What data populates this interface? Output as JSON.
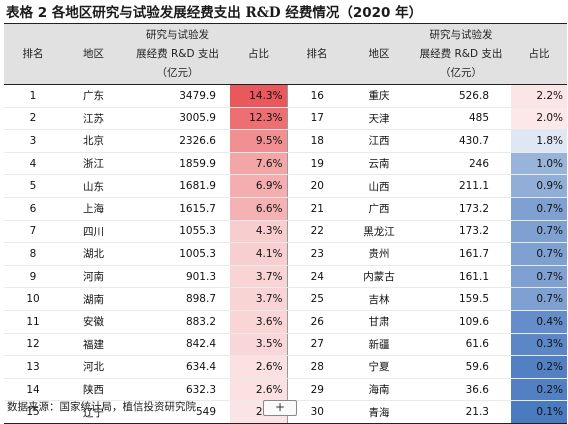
{
  "title": {
    "prefix": "表格 2 各地区研究与试验发展经费支出",
    "code": "R&D",
    "suffix": "经费情况（2020 年）"
  },
  "headers": {
    "rank": "排名",
    "region": "地区",
    "spending_line1": "研究与试验发",
    "spending_line2": "展经费 R&D 支出",
    "spending_line3": "（亿元）",
    "share": "占比"
  },
  "share_colors": {
    "high": "#e8585c",
    "low": "#4a7ac0"
  },
  "rows": [
    {
      "rank": "1",
      "region": "广东",
      "value": "3479.9",
      "share": "14.3%"
    },
    {
      "rank": "2",
      "region": "江苏",
      "value": "3005.9",
      "share": "12.3%"
    },
    {
      "rank": "3",
      "region": "北京",
      "value": "2326.6",
      "share": "9.5%"
    },
    {
      "rank": "4",
      "region": "浙江",
      "value": "1859.9",
      "share": "7.6%"
    },
    {
      "rank": "5",
      "region": "山东",
      "value": "1681.9",
      "share": "6.9%"
    },
    {
      "rank": "6",
      "region": "上海",
      "value": "1615.7",
      "share": "6.6%"
    },
    {
      "rank": "7",
      "region": "四川",
      "value": "1055.3",
      "share": "4.3%"
    },
    {
      "rank": "8",
      "region": "湖北",
      "value": "1005.3",
      "share": "4.1%"
    },
    {
      "rank": "9",
      "region": "河南",
      "value": "901.3",
      "share": "3.7%"
    },
    {
      "rank": "10",
      "region": "湖南",
      "value": "898.7",
      "share": "3.7%"
    },
    {
      "rank": "11",
      "region": "安徽",
      "value": "883.2",
      "share": "3.6%"
    },
    {
      "rank": "12",
      "region": "福建",
      "value": "842.4",
      "share": "3.5%"
    },
    {
      "rank": "13",
      "region": "河北",
      "value": "634.4",
      "share": "2.6%"
    },
    {
      "rank": "14",
      "region": "陕西",
      "value": "632.3",
      "share": "2.6%"
    },
    {
      "rank": "15",
      "region": "辽宁",
      "value": "549",
      "share": "2.3%"
    },
    {
      "rank": "16",
      "region": "重庆",
      "value": "526.8",
      "share": "2.2%"
    },
    {
      "rank": "17",
      "region": "天津",
      "value": "485",
      "share": "2.0%"
    },
    {
      "rank": "18",
      "region": "江西",
      "value": "430.7",
      "share": "1.8%"
    },
    {
      "rank": "19",
      "region": "云南",
      "value": "246",
      "share": "1.0%"
    },
    {
      "rank": "20",
      "region": "山西",
      "value": "211.1",
      "share": "0.9%"
    },
    {
      "rank": "21",
      "region": "广西",
      "value": "173.2",
      "share": "0.7%"
    },
    {
      "rank": "22",
      "region": "黑龙江",
      "value": "173.2",
      "share": "0.7%"
    },
    {
      "rank": "23",
      "region": "贵州",
      "value": "161.7",
      "share": "0.7%"
    },
    {
      "rank": "24",
      "region": "内蒙古",
      "value": "161.1",
      "share": "0.7%"
    },
    {
      "rank": "25",
      "region": "吉林",
      "value": "159.5",
      "share": "0.7%"
    },
    {
      "rank": "26",
      "region": "甘肃",
      "value": "109.6",
      "share": "0.4%"
    },
    {
      "rank": "27",
      "region": "新疆",
      "value": "61.6",
      "share": "0.3%"
    },
    {
      "rank": "28",
      "region": "宁夏",
      "value": "59.6",
      "share": "0.2%"
    },
    {
      "rank": "29",
      "region": "海南",
      "value": "36.6",
      "share": "0.2%"
    },
    {
      "rank": "30",
      "region": "青海",
      "value": "21.3",
      "share": "0.1%"
    }
  ],
  "source": "数据来源：国家统计局，植信投资研究院",
  "add_button": "+"
}
